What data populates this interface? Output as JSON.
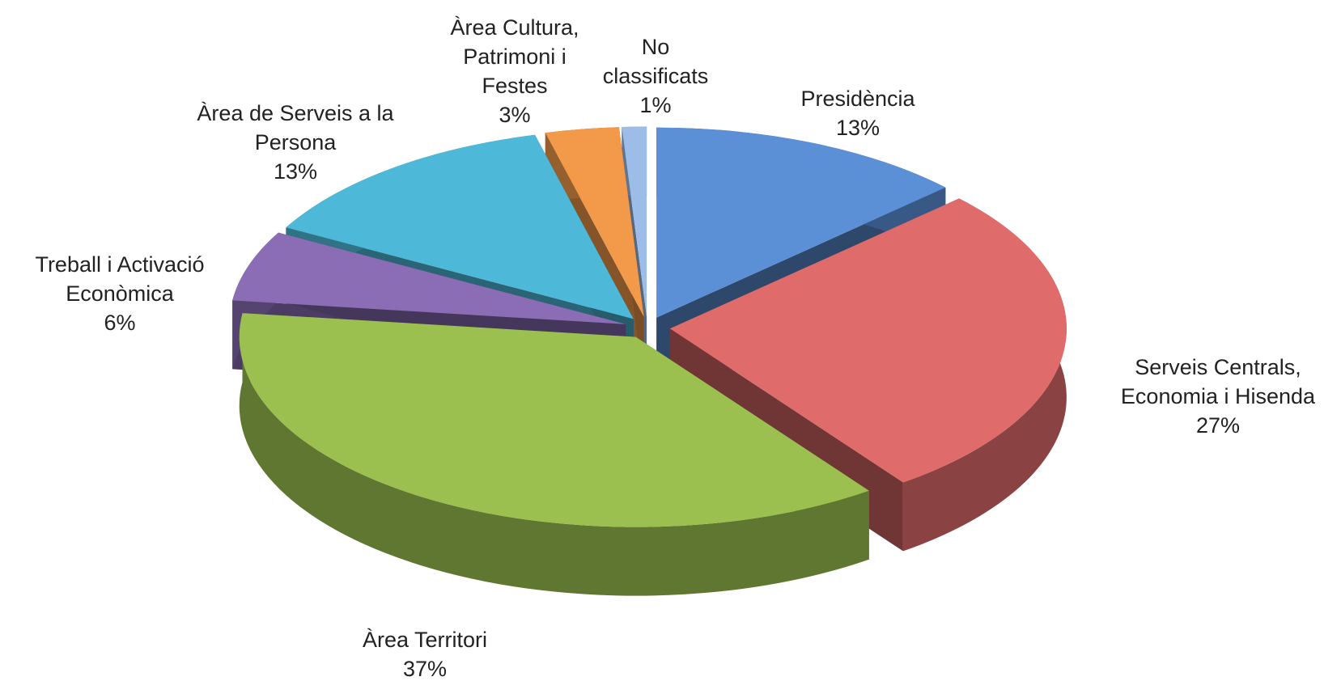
{
  "chart_data": {
    "type": "pie",
    "categories": [
      "Presidència",
      "Serveis Centrals, Economia i Hisenda",
      "Àrea Territori",
      "Treball i Activació Econòmica",
      "Àrea de Serveis a la Persona",
      "Àrea Cultura, Patrimoni i Festes",
      "No classificats"
    ],
    "values": [
      13,
      27,
      37,
      6,
      13,
      3,
      1
    ],
    "value_labels": [
      "13%",
      "27%",
      "37%",
      "6%",
      "13%",
      "3%",
      "1%"
    ],
    "colors": [
      "#5b8fd6",
      "#e06b6b",
      "#9bc04f",
      "#8a6db5",
      "#4db8d8",
      "#f29a4a",
      "#9dbde9"
    ]
  }
}
